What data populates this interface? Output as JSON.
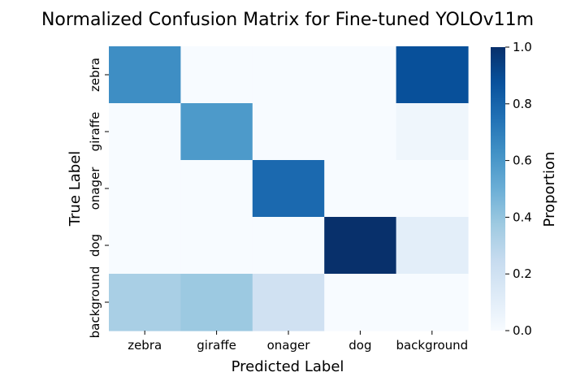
{
  "chart_data": {
    "type": "heatmap",
    "title": "Normalized Confusion Matrix for Fine-tuned YOLOv11m",
    "xlabel": "Predicted Label",
    "ylabel": "True Label",
    "x_categories": [
      "zebra",
      "giraffe",
      "onager",
      "dog",
      "background"
    ],
    "y_categories": [
      "zebra",
      "giraffe",
      "onager",
      "dog",
      "background"
    ],
    "values": [
      [
        0.64,
        0.0,
        0.0,
        0.0,
        0.88
      ],
      [
        0.0,
        0.59,
        0.0,
        0.0,
        0.04
      ],
      [
        0.0,
        0.0,
        0.78,
        0.0,
        0.0
      ],
      [
        0.0,
        0.0,
        0.0,
        1.0,
        0.1
      ],
      [
        0.34,
        0.38,
        0.2,
        0.0,
        0.0
      ]
    ],
    "colorbar": {
      "label": "Proportion",
      "range": [
        0.0,
        1.0
      ],
      "ticks": [
        "0.0",
        "0.2",
        "0.4",
        "0.6",
        "0.8",
        "1.0"
      ],
      "colormap": "Blues"
    }
  }
}
